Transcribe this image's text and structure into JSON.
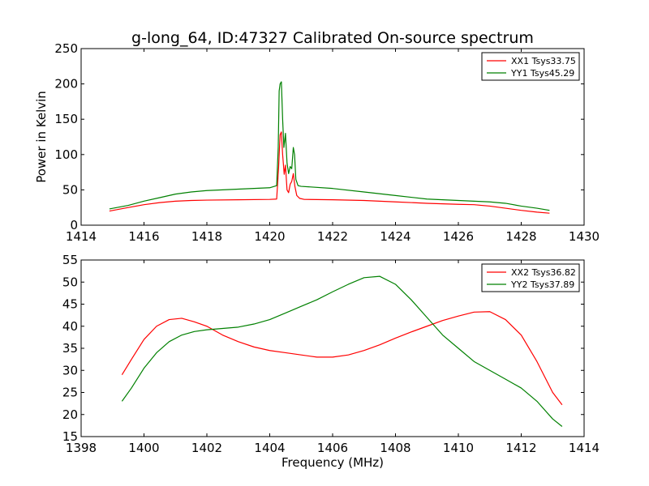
{
  "colors": {
    "red": "#ff0000",
    "green": "#008000"
  },
  "chart_data": [
    {
      "type": "line",
      "title": "g-long_64, ID:47327 Calibrated On-source spectrum",
      "xlabel": "",
      "ylabel": "Power in Kelvin",
      "xlim": [
        1414,
        1430
      ],
      "ylim": [
        0,
        250
      ],
      "xticks": [
        1414,
        1416,
        1418,
        1420,
        1422,
        1424,
        1426,
        1428,
        1430
      ],
      "yticks": [
        0,
        50,
        100,
        150,
        200,
        250
      ],
      "legend_position": "top-right",
      "series": [
        {
          "name": "XX1 Tsys33.75",
          "color": "#ff0000",
          "points": [
            [
              1414.9,
              20
            ],
            [
              1415.5,
              25
            ],
            [
              1416.0,
              29
            ],
            [
              1416.5,
              32
            ],
            [
              1417.0,
              34
            ],
            [
              1417.5,
              35
            ],
            [
              1418.0,
              35.5
            ],
            [
              1419.0,
              36
            ],
            [
              1420.0,
              36.5
            ],
            [
              1420.22,
              37
            ],
            [
              1420.28,
              80
            ],
            [
              1420.33,
              128
            ],
            [
              1420.37,
              132
            ],
            [
              1420.41,
              100
            ],
            [
              1420.46,
              72
            ],
            [
              1420.5,
              85
            ],
            [
              1420.55,
              50
            ],
            [
              1420.6,
              46
            ],
            [
              1420.65,
              58
            ],
            [
              1420.7,
              62
            ],
            [
              1420.75,
              73
            ],
            [
              1420.8,
              55
            ],
            [
              1420.86,
              42
            ],
            [
              1420.95,
              38
            ],
            [
              1421.1,
              36.5
            ],
            [
              1422.0,
              36
            ],
            [
              1423.0,
              35
            ],
            [
              1424.0,
              33
            ],
            [
              1425.0,
              31
            ],
            [
              1426.0,
              29.5
            ],
            [
              1426.5,
              29
            ],
            [
              1427.0,
              27
            ],
            [
              1427.5,
              24
            ],
            [
              1428.0,
              21
            ],
            [
              1428.5,
              18.5
            ],
            [
              1428.9,
              17
            ]
          ]
        },
        {
          "name": "YY1 Tsys45.29",
          "color": "#008000",
          "points": [
            [
              1414.9,
              23
            ],
            [
              1415.5,
              28
            ],
            [
              1416.0,
              34
            ],
            [
              1416.5,
              39
            ],
            [
              1417.0,
              44
            ],
            [
              1417.5,
              47
            ],
            [
              1418.0,
              49
            ],
            [
              1419.0,
              51
            ],
            [
              1420.0,
              53
            ],
            [
              1420.22,
              56
            ],
            [
              1420.27,
              110
            ],
            [
              1420.3,
              190
            ],
            [
              1420.33,
              200
            ],
            [
              1420.37,
              203
            ],
            [
              1420.41,
              150
            ],
            [
              1420.45,
              110
            ],
            [
              1420.5,
              130
            ],
            [
              1420.55,
              88
            ],
            [
              1420.6,
              73
            ],
            [
              1420.65,
              83
            ],
            [
              1420.7,
              80
            ],
            [
              1420.75,
              110
            ],
            [
              1420.79,
              100
            ],
            [
              1420.83,
              65
            ],
            [
              1420.9,
              56
            ],
            [
              1421.0,
              55
            ],
            [
              1422.0,
              52
            ],
            [
              1423.0,
              47
            ],
            [
              1424.0,
              42
            ],
            [
              1425.0,
              37
            ],
            [
              1426.0,
              35
            ],
            [
              1427.0,
              33
            ],
            [
              1427.5,
              31
            ],
            [
              1428.0,
              27
            ],
            [
              1428.5,
              24
            ],
            [
              1428.9,
              21
            ]
          ]
        }
      ]
    },
    {
      "type": "line",
      "title": "",
      "xlabel": "Frequency (MHz)",
      "ylabel": "",
      "xlim": [
        1398,
        1414
      ],
      "ylim": [
        15,
        55
      ],
      "xticks": [
        1398,
        1400,
        1402,
        1404,
        1406,
        1408,
        1410,
        1412,
        1414
      ],
      "yticks": [
        15,
        20,
        25,
        30,
        35,
        40,
        45,
        50,
        55
      ],
      "legend_position": "top-right",
      "series": [
        {
          "name": "XX2 Tsys36.82",
          "color": "#ff0000",
          "points": [
            [
              1399.3,
              29
            ],
            [
              1399.6,
              32.5
            ],
            [
              1400.0,
              37
            ],
            [
              1400.4,
              40
            ],
            [
              1400.8,
              41.5
            ],
            [
              1401.2,
              41.8
            ],
            [
              1401.6,
              41
            ],
            [
              1402.0,
              40
            ],
            [
              1402.5,
              38
            ],
            [
              1403.0,
              36.5
            ],
            [
              1403.5,
              35.3
            ],
            [
              1404.0,
              34.5
            ],
            [
              1404.5,
              34
            ],
            [
              1405.0,
              33.5
            ],
            [
              1405.5,
              33
            ],
            [
              1406.0,
              33
            ],
            [
              1406.5,
              33.5
            ],
            [
              1407.0,
              34.5
            ],
            [
              1407.5,
              35.8
            ],
            [
              1408.0,
              37.3
            ],
            [
              1408.5,
              38.7
            ],
            [
              1409.0,
              40
            ],
            [
              1409.5,
              41.3
            ],
            [
              1410.0,
              42.3
            ],
            [
              1410.5,
              43.2
            ],
            [
              1411.0,
              43.3
            ],
            [
              1411.5,
              41.5
            ],
            [
              1412.0,
              38
            ],
            [
              1412.5,
              32
            ],
            [
              1413.0,
              25
            ],
            [
              1413.3,
              22.2
            ]
          ]
        },
        {
          "name": "YY2 Tsys37.89",
          "color": "#008000",
          "points": [
            [
              1399.3,
              23
            ],
            [
              1399.6,
              26
            ],
            [
              1400.0,
              30.5
            ],
            [
              1400.4,
              34
            ],
            [
              1400.8,
              36.5
            ],
            [
              1401.2,
              38
            ],
            [
              1401.6,
              38.8
            ],
            [
              1402.0,
              39.2
            ],
            [
              1402.5,
              39.5
            ],
            [
              1403.0,
              39.8
            ],
            [
              1403.5,
              40.5
            ],
            [
              1404.0,
              41.5
            ],
            [
              1404.5,
              43
            ],
            [
              1405.0,
              44.5
            ],
            [
              1405.5,
              46
            ],
            [
              1406.0,
              47.8
            ],
            [
              1406.5,
              49.5
            ],
            [
              1407.0,
              51
            ],
            [
              1407.5,
              51.3
            ],
            [
              1408.0,
              49.5
            ],
            [
              1408.5,
              46
            ],
            [
              1409.0,
              42
            ],
            [
              1409.5,
              38
            ],
            [
              1410.0,
              35
            ],
            [
              1410.5,
              32
            ],
            [
              1411.0,
              30
            ],
            [
              1411.5,
              28
            ],
            [
              1412.0,
              26
            ],
            [
              1412.5,
              23
            ],
            [
              1413.0,
              19
            ],
            [
              1413.3,
              17.3
            ]
          ]
        }
      ]
    }
  ]
}
